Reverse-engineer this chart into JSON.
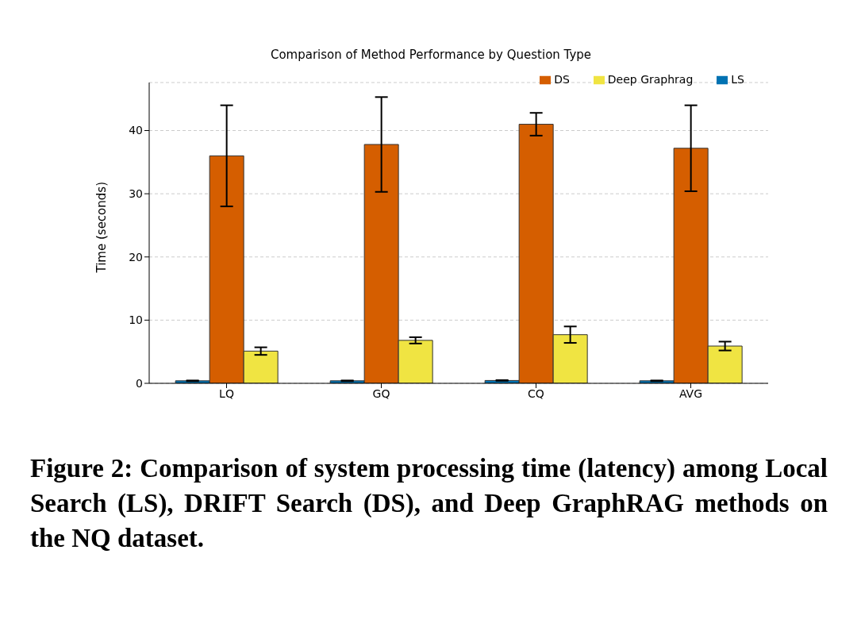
{
  "chart_data": {
    "type": "bar",
    "title": "Comparison of Method Performance by Question Type",
    "ylabel": "Time (seconds)",
    "categories": [
      "LQ",
      "GQ",
      "CQ",
      "AVG"
    ],
    "series": [
      {
        "name": "LS",
        "color": "#0072b2",
        "values": [
          0.4,
          0.4,
          0.45,
          0.4
        ],
        "errors": [
          0.05,
          0.05,
          0.05,
          0.05
        ]
      },
      {
        "name": "DS",
        "color": "#d55e00",
        "values": [
          36.0,
          37.8,
          41.0,
          37.2
        ],
        "errors": [
          8.0,
          7.5,
          1.8,
          6.8
        ]
      },
      {
        "name": "Deep Graphrag",
        "color": "#f0e442",
        "values": [
          5.1,
          6.8,
          7.7,
          5.9
        ],
        "errors": [
          0.6,
          0.5,
          1.3,
          0.7
        ]
      }
    ],
    "ylim": [
      0,
      47.6
    ],
    "yticks": [
      0,
      10,
      20,
      30,
      40
    ],
    "grid": "y",
    "line_style": "dashed",
    "legend": "top right",
    "annotations": [
      "Figure 2: Comparison of system processing time (latency) among Local Search (LS), DRIFT Search (DS), and Deep GraphRAG methods on the NQ dataset."
    ]
  }
}
